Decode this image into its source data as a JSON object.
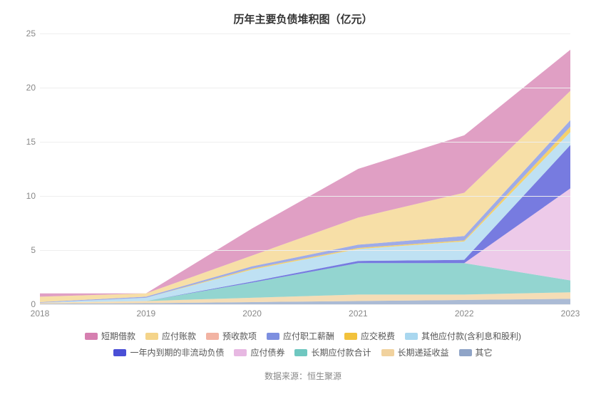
{
  "chart": {
    "type": "stacked-area",
    "title": "历年主要负债堆积图（亿元）",
    "title_fontsize": 15,
    "title_color": "#333333",
    "background_color": "#ffffff",
    "grid_color": "#eeeeee",
    "axis_label_color": "#888888",
    "axis_font_size": 12,
    "xlim": [
      2018,
      2023
    ],
    "ylim": [
      0,
      25
    ],
    "ytick_step": 5,
    "yticks": [
      0,
      5,
      10,
      15,
      20,
      25
    ],
    "categories": [
      "2018",
      "2019",
      "2020",
      "2021",
      "2022",
      "2023"
    ],
    "series": [
      {
        "name": "其它",
        "color": "#8fa4c7",
        "values": [
          0.05,
          0.1,
          0.2,
          0.3,
          0.4,
          0.5
        ]
      },
      {
        "name": "长期递延收益",
        "color": "#f1d29e",
        "values": [
          0.1,
          0.2,
          0.4,
          0.6,
          0.5,
          0.6
        ]
      },
      {
        "name": "长期应付款合计",
        "color": "#6fc7c0",
        "values": [
          0.0,
          0.0,
          1.4,
          2.9,
          2.9,
          1.1
        ]
      },
      {
        "name": "应付债券",
        "color": "#e7b8e2",
        "values": [
          0.0,
          0.0,
          0.0,
          0.0,
          0.0,
          8.5
        ]
      },
      {
        "name": "一年内到期的非流动负债",
        "color": "#4a4fd6",
        "values": [
          0.0,
          0.0,
          0.1,
          0.2,
          0.3,
          4.0
        ]
      },
      {
        "name": "其他应付款(含利息和股利)",
        "color": "#a9d7ef",
        "values": [
          0.0,
          0.3,
          1.1,
          1.1,
          1.7,
          1.2
        ]
      },
      {
        "name": "应交税费",
        "color": "#f2c23c",
        "values": [
          0.0,
          0.0,
          0.1,
          0.1,
          0.1,
          0.5
        ]
      },
      {
        "name": "应付职工薪酬",
        "color": "#7d8fe0",
        "values": [
          0.05,
          0.1,
          0.2,
          0.3,
          0.4,
          0.6
        ]
      },
      {
        "name": "预收款项",
        "color": "#f2b3a3",
        "values": [
          0.0,
          0.0,
          0.0,
          0.0,
          0.0,
          0.0
        ]
      },
      {
        "name": "应付账款",
        "color": "#f4d48a",
        "values": [
          0.5,
          0.3,
          1.0,
          2.5,
          4.0,
          2.7
        ]
      },
      {
        "name": "短期借款",
        "color": "#d67fb0",
        "values": [
          0.3,
          0.0,
          2.5,
          4.5,
          5.3,
          3.8
        ]
      }
    ],
    "cumulative_tops": [
      [
        0.05,
        0.1,
        0.2,
        0.3,
        0.4,
        0.5
      ],
      [
        0.15,
        0.3,
        0.6,
        0.9,
        0.9,
        1.1
      ],
      [
        0.15,
        0.3,
        2.0,
        3.8,
        3.8,
        2.2
      ],
      [
        0.15,
        0.3,
        2.0,
        3.8,
        3.8,
        10.7
      ],
      [
        0.15,
        0.3,
        2.1,
        4.0,
        4.1,
        14.7
      ],
      [
        0.15,
        0.6,
        3.2,
        5.1,
        5.8,
        15.9
      ],
      [
        0.15,
        0.6,
        3.3,
        5.2,
        5.9,
        16.4
      ],
      [
        0.2,
        0.7,
        3.5,
        5.5,
        6.3,
        17.0
      ],
      [
        0.2,
        0.7,
        3.5,
        5.5,
        6.3,
        17.0
      ],
      [
        0.7,
        1.0,
        4.5,
        8.0,
        10.3,
        19.7
      ],
      [
        1.0,
        1.0,
        7.0,
        12.5,
        15.6,
        23.5
      ]
    ],
    "legend_order": [
      "短期借款",
      "应付账款",
      "预收款项",
      "应付职工薪酬",
      "应交税费",
      "其他应付款(含利息和股利)",
      "一年内到期的非流动负债",
      "应付债券",
      "长期应付款合计",
      "长期递延收益",
      "其它"
    ],
    "footer": "数据来源：恒生聚源",
    "footer_color": "#888888"
  }
}
